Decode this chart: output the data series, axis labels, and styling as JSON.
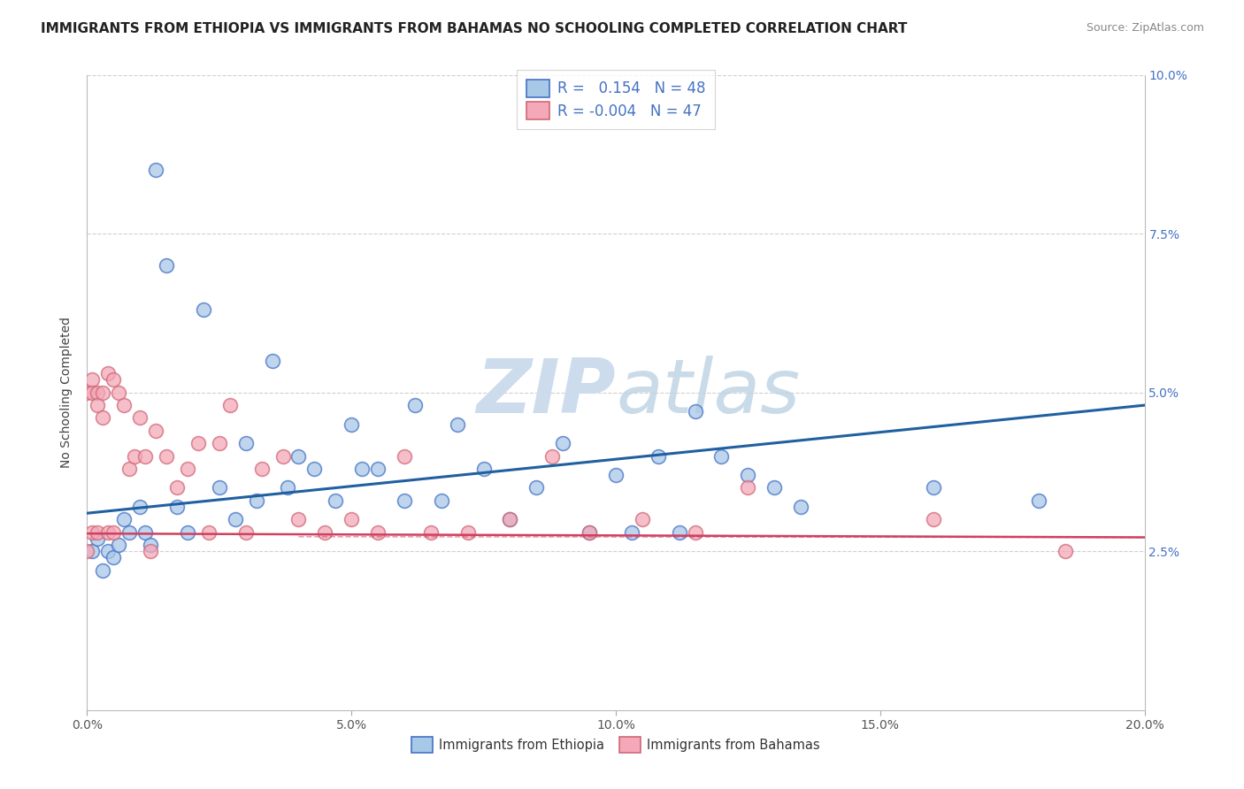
{
  "title": "IMMIGRANTS FROM ETHIOPIA VS IMMIGRANTS FROM BAHAMAS NO SCHOOLING COMPLETED CORRELATION CHART",
  "source": "Source: ZipAtlas.com",
  "ylabel": "No Schooling Completed",
  "xlim": [
    0.0,
    0.2
  ],
  "ylim": [
    0.0,
    0.1
  ],
  "xtick_vals": [
    0.0,
    0.05,
    0.1,
    0.15,
    0.2
  ],
  "xtick_labels": [
    "0.0%",
    "5.0%",
    "10.0%",
    "15.0%",
    "20.0%"
  ],
  "ytick_vals": [
    0.0,
    0.025,
    0.05,
    0.075,
    0.1
  ],
  "ytick_labels_right": [
    "",
    "2.5%",
    "5.0%",
    "7.5%",
    "10.0%"
  ],
  "legend1_label": "Immigrants from Ethiopia",
  "legend2_label": "Immigrants from Bahamas",
  "R1": 0.154,
  "N1": 48,
  "R2": -0.004,
  "N2": 47,
  "blue_face": "#a8c8e8",
  "blue_edge": "#4472c4",
  "pink_face": "#f4a8b8",
  "pink_edge": "#d06878",
  "line_blue": "#2060a0",
  "line_pink": "#d04060",
  "watermark_color": "#ccdcec",
  "grid_color": "#d0d0d0",
  "title_color": "#222222",
  "tick_color_right": "#4472c4",
  "eth_line_y0": 0.031,
  "eth_line_y1": 0.048,
  "bah_line_y0": 0.0278,
  "bah_line_y1": 0.0272,
  "eth_x": [
    0.001,
    0.002,
    0.003,
    0.004,
    0.005,
    0.006,
    0.007,
    0.008,
    0.01,
    0.011,
    0.012,
    0.013,
    0.015,
    0.017,
    0.019,
    0.022,
    0.025,
    0.028,
    0.03,
    0.032,
    0.035,
    0.038,
    0.04,
    0.043,
    0.047,
    0.05,
    0.052,
    0.055,
    0.06,
    0.062,
    0.067,
    0.07,
    0.075,
    0.08,
    0.085,
    0.09,
    0.095,
    0.1,
    0.103,
    0.108,
    0.112,
    0.115,
    0.12,
    0.125,
    0.13,
    0.135,
    0.16,
    0.18
  ],
  "eth_y": [
    0.025,
    0.027,
    0.022,
    0.025,
    0.024,
    0.026,
    0.03,
    0.028,
    0.032,
    0.028,
    0.026,
    0.085,
    0.07,
    0.032,
    0.028,
    0.063,
    0.035,
    0.03,
    0.042,
    0.033,
    0.055,
    0.035,
    0.04,
    0.038,
    0.033,
    0.045,
    0.038,
    0.038,
    0.033,
    0.048,
    0.033,
    0.045,
    0.038,
    0.03,
    0.035,
    0.042,
    0.028,
    0.037,
    0.028,
    0.04,
    0.028,
    0.047,
    0.04,
    0.037,
    0.035,
    0.032,
    0.035,
    0.033
  ],
  "bah_x": [
    0.0,
    0.0,
    0.001,
    0.001,
    0.001,
    0.002,
    0.002,
    0.002,
    0.003,
    0.003,
    0.004,
    0.004,
    0.005,
    0.005,
    0.006,
    0.007,
    0.008,
    0.009,
    0.01,
    0.011,
    0.012,
    0.013,
    0.015,
    0.017,
    0.019,
    0.021,
    0.023,
    0.025,
    0.027,
    0.03,
    0.033,
    0.037,
    0.04,
    0.045,
    0.05,
    0.055,
    0.06,
    0.065,
    0.072,
    0.08,
    0.088,
    0.095,
    0.105,
    0.115,
    0.125,
    0.16,
    0.185
  ],
  "bah_y": [
    0.025,
    0.05,
    0.028,
    0.052,
    0.05,
    0.05,
    0.048,
    0.028,
    0.046,
    0.05,
    0.053,
    0.028,
    0.028,
    0.052,
    0.05,
    0.048,
    0.038,
    0.04,
    0.046,
    0.04,
    0.025,
    0.044,
    0.04,
    0.035,
    0.038,
    0.042,
    0.028,
    0.042,
    0.048,
    0.028,
    0.038,
    0.04,
    0.03,
    0.028,
    0.03,
    0.028,
    0.04,
    0.028,
    0.028,
    0.03,
    0.04,
    0.028,
    0.03,
    0.028,
    0.035,
    0.03,
    0.025
  ]
}
